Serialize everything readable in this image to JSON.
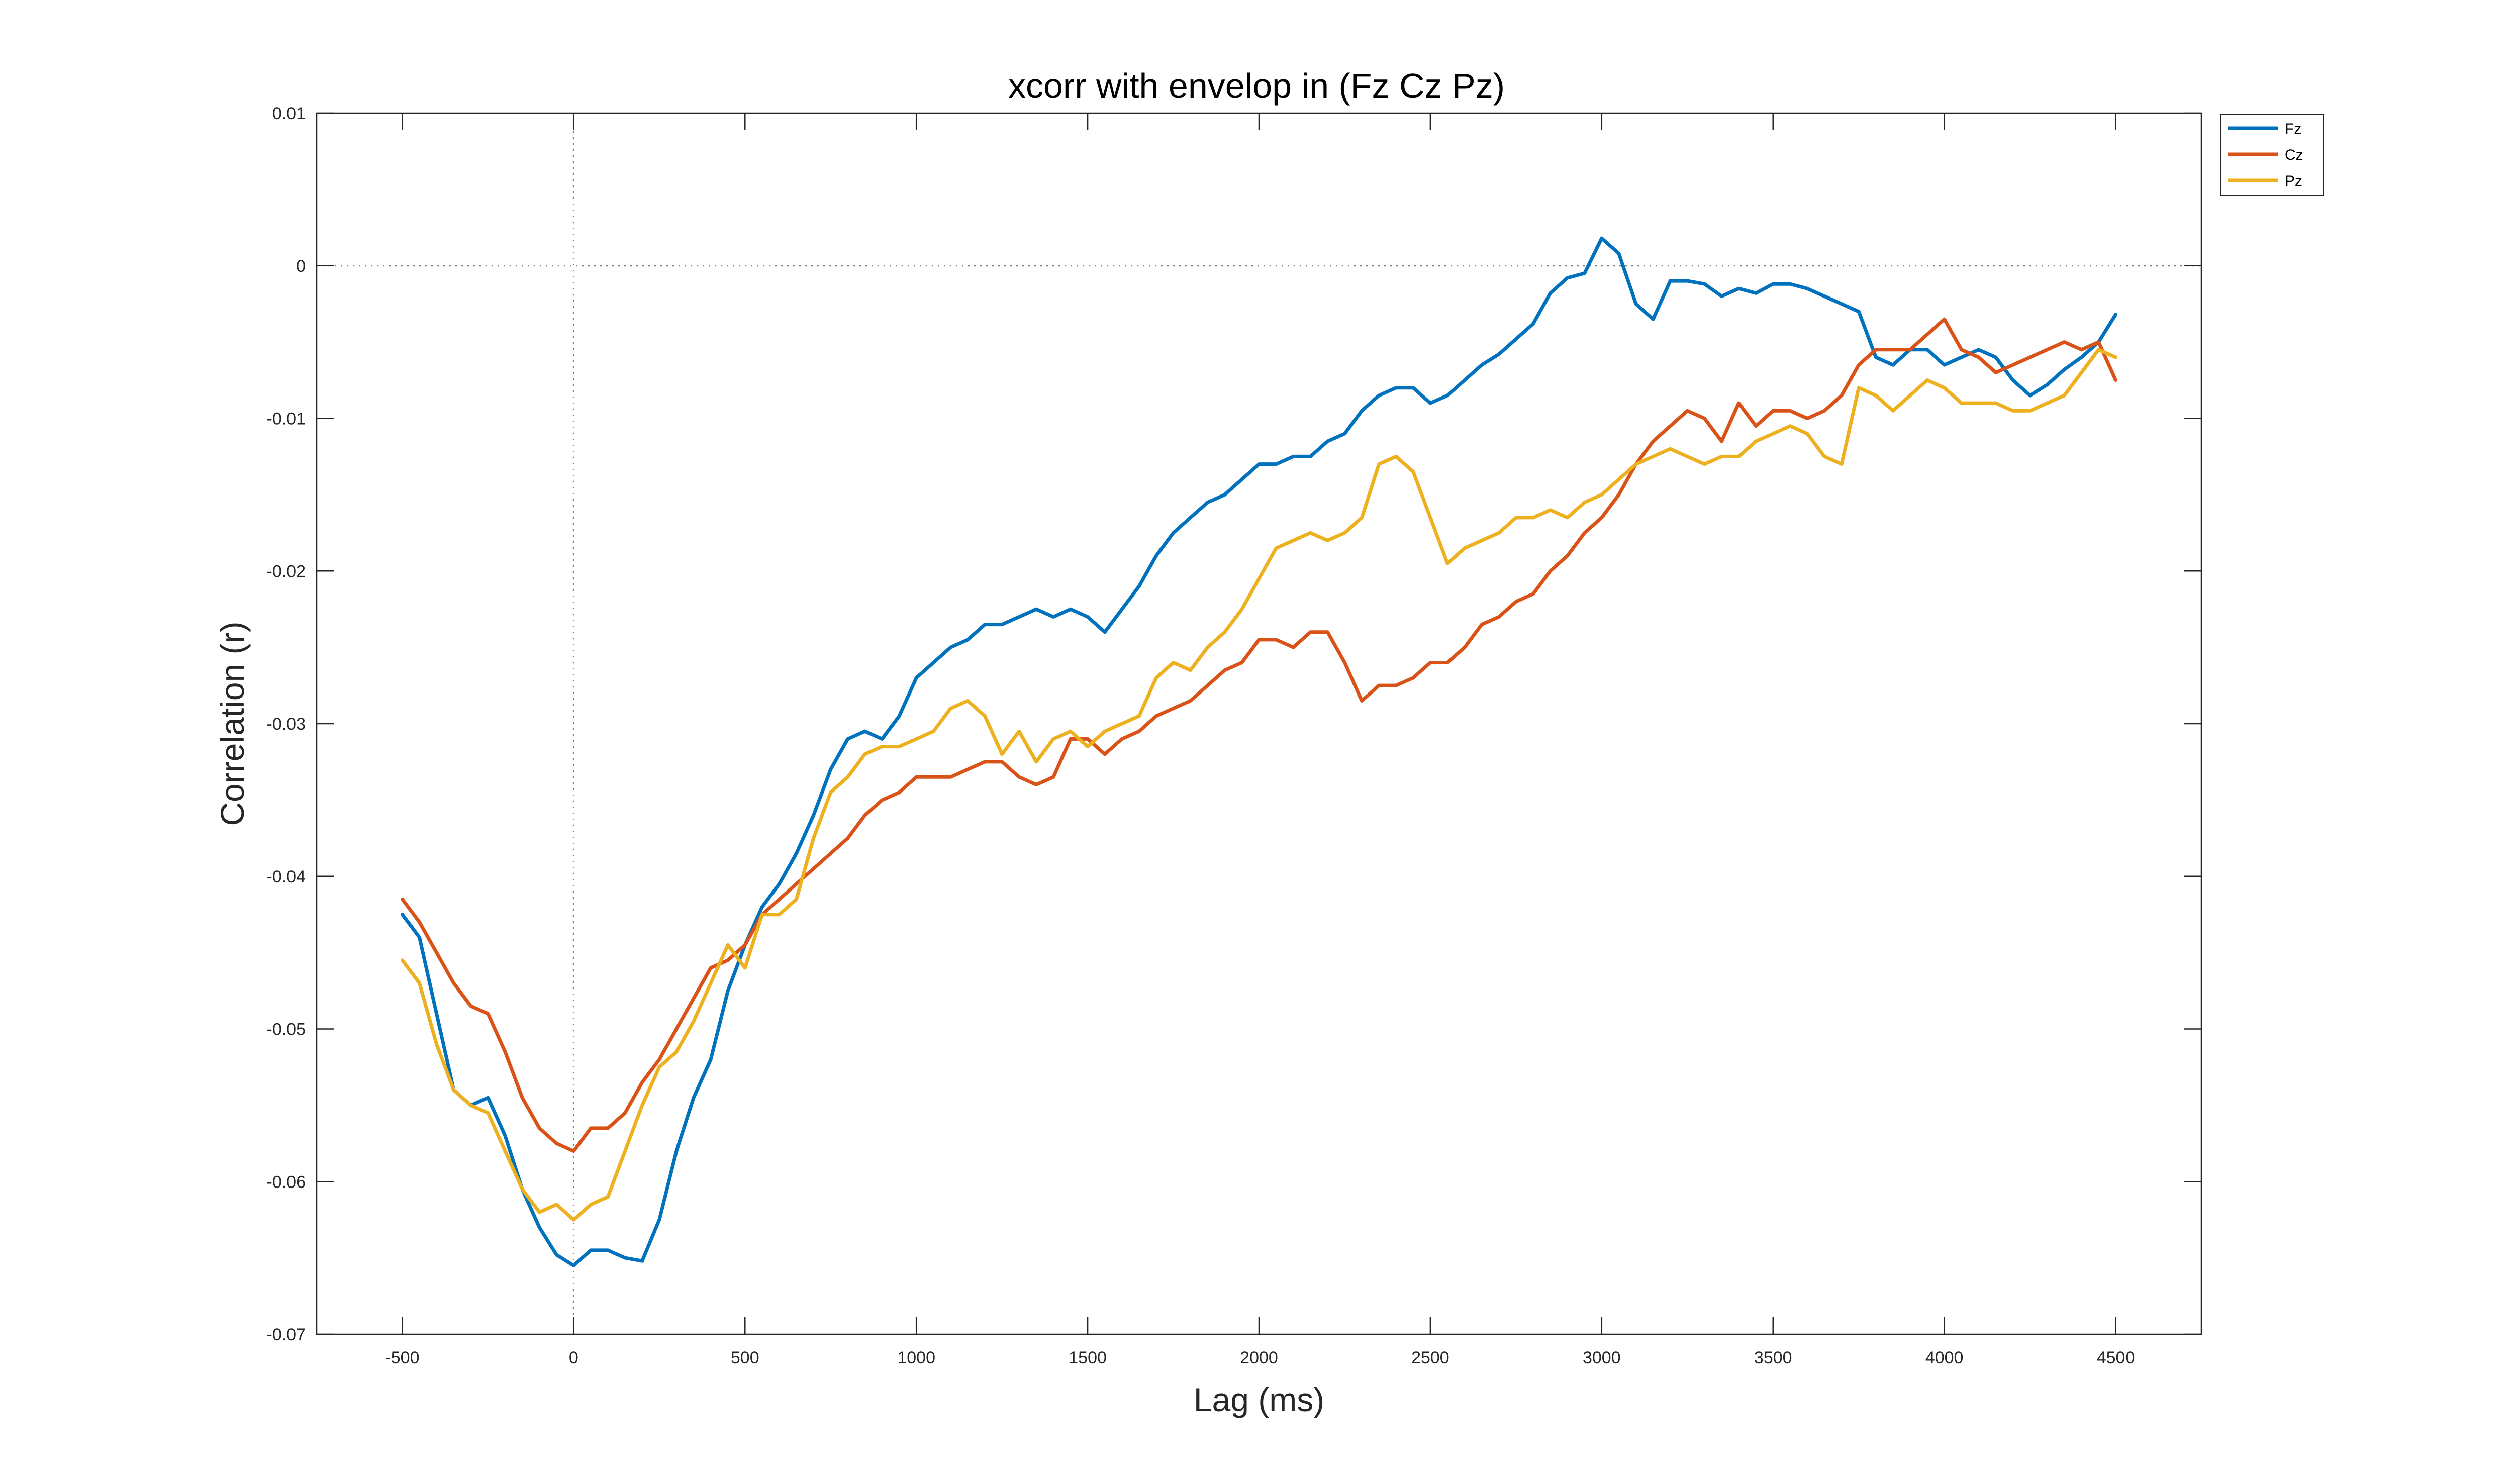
{
  "chart_data": {
    "type": "line",
    "title": "xcorr with envelop in (Fz Cz Pz)",
    "xlabel": "Lag (ms)",
    "ylabel": "Correlation (r)",
    "xlim": [
      -750,
      4750
    ],
    "ylim": [
      -0.07,
      0.01
    ],
    "xticks": [
      -500,
      0,
      500,
      1000,
      1500,
      2000,
      2500,
      3000,
      3500,
      4000,
      4500
    ],
    "xtick_labels": [
      "-500",
      "0",
      "500",
      "1000",
      "1500",
      "2000",
      "2500",
      "3000",
      "3500",
      "4000",
      "4500"
    ],
    "yticks": [
      0.01,
      0,
      -0.01,
      -0.02,
      -0.03,
      -0.04,
      -0.05,
      -0.06,
      -0.07
    ],
    "ytick_labels": [
      "0.01",
      "0",
      "-0.01",
      "-0.02",
      "-0.03",
      "-0.04",
      "-0.05",
      "-0.06",
      "-0.07"
    ],
    "reference_lines": {
      "x": 0,
      "y": 0,
      "style": "dotted"
    },
    "grid": false,
    "legend_position": "outside-top-right",
    "series": [
      {
        "name": "Fz",
        "color": "#0072BD",
        "x": [
          -500,
          -450,
          -400,
          -350,
          -300,
          -250,
          -200,
          -150,
          -100,
          -50,
          0,
          50,
          100,
          150,
          200,
          250,
          300,
          350,
          400,
          450,
          500,
          550,
          600,
          650,
          700,
          750,
          800,
          850,
          900,
          950,
          1000,
          1050,
          1100,
          1150,
          1200,
          1250,
          1300,
          1350,
          1400,
          1450,
          1500,
          1550,
          1600,
          1650,
          1700,
          1750,
          1800,
          1850,
          1900,
          1950,
          2000,
          2050,
          2100,
          2150,
          2200,
          2250,
          2300,
          2350,
          2400,
          2450,
          2500,
          2550,
          2600,
          2650,
          2700,
          2750,
          2800,
          2850,
          2900,
          2950,
          3000,
          3050,
          3100,
          3150,
          3200,
          3250,
          3300,
          3350,
          3400,
          3450,
          3500,
          3550,
          3600,
          3650,
          3700,
          3750,
          3800,
          3850,
          3900,
          3950,
          4000,
          4050,
          4100,
          4150,
          4200,
          4250,
          4300,
          4350,
          4400,
          4450,
          4500
        ],
        "y": [
          -0.0425,
          -0.044,
          -0.049,
          -0.054,
          -0.055,
          -0.0545,
          -0.057,
          -0.0605,
          -0.063,
          -0.0648,
          -0.0655,
          -0.0645,
          -0.0645,
          -0.065,
          -0.0652,
          -0.0625,
          -0.058,
          -0.0545,
          -0.052,
          -0.0475,
          -0.0445,
          -0.042,
          -0.0405,
          -0.0385,
          -0.036,
          -0.033,
          -0.031,
          -0.0305,
          -0.031,
          -0.0295,
          -0.027,
          -0.026,
          -0.025,
          -0.0245,
          -0.0235,
          -0.0235,
          -0.023,
          -0.0225,
          -0.023,
          -0.0225,
          -0.023,
          -0.024,
          -0.0225,
          -0.021,
          -0.019,
          -0.0175,
          -0.0165,
          -0.0155,
          -0.015,
          -0.014,
          -0.013,
          -0.013,
          -0.0125,
          -0.0125,
          -0.0115,
          -0.011,
          -0.0095,
          -0.0085,
          -0.008,
          -0.008,
          -0.009,
          -0.0085,
          -0.0075,
          -0.0065,
          -0.0058,
          -0.0048,
          -0.0038,
          -0.0018,
          -0.0008,
          -0.0005,
          0.0018,
          0.0008,
          -0.0025,
          -0.0035,
          -0.001,
          -0.001,
          -0.0012,
          -0.002,
          -0.0015,
          -0.0018,
          -0.0012,
          -0.0012,
          -0.0015,
          -0.002,
          -0.0025,
          -0.003,
          -0.006,
          -0.0065,
          -0.0055,
          -0.0055,
          -0.0065,
          -0.006,
          -0.0055,
          -0.006,
          -0.0075,
          -0.0085,
          -0.0078,
          -0.0068,
          -0.006,
          -0.005,
          -0.0032
        ]
      },
      {
        "name": "Cz",
        "color": "#D95319",
        "x": [
          -500,
          -450,
          -400,
          -350,
          -300,
          -250,
          -200,
          -150,
          -100,
          -50,
          0,
          50,
          100,
          150,
          200,
          250,
          300,
          350,
          400,
          450,
          500,
          550,
          600,
          650,
          700,
          750,
          800,
          850,
          900,
          950,
          1000,
          1050,
          1100,
          1150,
          1200,
          1250,
          1300,
          1350,
          1400,
          1450,
          1500,
          1550,
          1600,
          1650,
          1700,
          1750,
          1800,
          1850,
          1900,
          1950,
          2000,
          2050,
          2100,
          2150,
          2200,
          2250,
          2300,
          2350,
          2400,
          2450,
          2500,
          2550,
          2600,
          2650,
          2700,
          2750,
          2800,
          2850,
          2900,
          2950,
          3000,
          3050,
          3100,
          3150,
          3200,
          3250,
          3300,
          3350,
          3400,
          3450,
          3500,
          3550,
          3600,
          3650,
          3700,
          3750,
          3800,
          3850,
          3900,
          3950,
          4000,
          4050,
          4100,
          4150,
          4200,
          4250,
          4300,
          4350,
          4400,
          4450,
          4500
        ],
        "y": [
          -0.0415,
          -0.043,
          -0.045,
          -0.047,
          -0.0485,
          -0.049,
          -0.0515,
          -0.0545,
          -0.0565,
          -0.0575,
          -0.058,
          -0.0565,
          -0.0565,
          -0.0555,
          -0.0535,
          -0.052,
          -0.05,
          -0.048,
          -0.046,
          -0.0455,
          -0.0445,
          -0.0425,
          -0.0415,
          -0.0405,
          -0.0395,
          -0.0385,
          -0.0375,
          -0.036,
          -0.035,
          -0.0345,
          -0.0335,
          -0.0335,
          -0.0335,
          -0.033,
          -0.0325,
          -0.0325,
          -0.0335,
          -0.034,
          -0.0335,
          -0.031,
          -0.031,
          -0.032,
          -0.031,
          -0.0305,
          -0.0295,
          -0.029,
          -0.0285,
          -0.0275,
          -0.0265,
          -0.026,
          -0.0245,
          -0.0245,
          -0.025,
          -0.024,
          -0.024,
          -0.026,
          -0.0285,
          -0.0275,
          -0.0275,
          -0.027,
          -0.026,
          -0.026,
          -0.025,
          -0.0235,
          -0.023,
          -0.022,
          -0.0215,
          -0.02,
          -0.019,
          -0.0175,
          -0.0165,
          -0.015,
          -0.013,
          -0.0115,
          -0.0105,
          -0.0095,
          -0.01,
          -0.0115,
          -0.009,
          -0.0105,
          -0.0095,
          -0.0095,
          -0.01,
          -0.0095,
          -0.0085,
          -0.0065,
          -0.0055,
          -0.0055,
          -0.0055,
          -0.0045,
          -0.0035,
          -0.0055,
          -0.006,
          -0.007,
          -0.0065,
          -0.006,
          -0.0055,
          -0.005,
          -0.0055,
          -0.005,
          -0.0075
        ]
      },
      {
        "name": "Pz",
        "color": "#EDB120",
        "x": [
          -500,
          -450,
          -400,
          -350,
          -300,
          -250,
          -200,
          -150,
          -100,
          -50,
          0,
          50,
          100,
          150,
          200,
          250,
          300,
          350,
          400,
          450,
          500,
          550,
          600,
          650,
          700,
          750,
          800,
          850,
          900,
          950,
          1000,
          1050,
          1100,
          1150,
          1200,
          1250,
          1300,
          1350,
          1400,
          1450,
          1500,
          1550,
          1600,
          1650,
          1700,
          1750,
          1800,
          1850,
          1900,
          1950,
          2000,
          2050,
          2100,
          2150,
          2200,
          2250,
          2300,
          2350,
          2400,
          2450,
          2500,
          2550,
          2600,
          2650,
          2700,
          2750,
          2800,
          2850,
          2900,
          2950,
          3000,
          3050,
          3100,
          3150,
          3200,
          3250,
          3300,
          3350,
          3400,
          3450,
          3500,
          3550,
          3600,
          3650,
          3700,
          3750,
          3800,
          3850,
          3900,
          3950,
          4000,
          4050,
          4100,
          4150,
          4200,
          4250,
          4300,
          4350,
          4400,
          4450,
          4500
        ],
        "y": [
          -0.0455,
          -0.047,
          -0.051,
          -0.054,
          -0.055,
          -0.0555,
          -0.058,
          -0.0605,
          -0.062,
          -0.0615,
          -0.0625,
          -0.0615,
          -0.061,
          -0.058,
          -0.055,
          -0.0525,
          -0.0515,
          -0.0495,
          -0.047,
          -0.0445,
          -0.046,
          -0.0425,
          -0.0425,
          -0.0415,
          -0.0375,
          -0.0345,
          -0.0335,
          -0.032,
          -0.0315,
          -0.0315,
          -0.031,
          -0.0305,
          -0.029,
          -0.0285,
          -0.0295,
          -0.032,
          -0.0305,
          -0.0325,
          -0.031,
          -0.0305,
          -0.0315,
          -0.0305,
          -0.03,
          -0.0295,
          -0.027,
          -0.026,
          -0.0265,
          -0.025,
          -0.024,
          -0.0225,
          -0.0205,
          -0.0185,
          -0.018,
          -0.0175,
          -0.018,
          -0.0175,
          -0.0165,
          -0.013,
          -0.0125,
          -0.0135,
          -0.0165,
          -0.0195,
          -0.0185,
          -0.018,
          -0.0175,
          -0.0165,
          -0.0165,
          -0.016,
          -0.0165,
          -0.0155,
          -0.015,
          -0.014,
          -0.013,
          -0.0125,
          -0.012,
          -0.0125,
          -0.013,
          -0.0125,
          -0.0125,
          -0.0115,
          -0.011,
          -0.0105,
          -0.011,
          -0.0125,
          -0.013,
          -0.008,
          -0.0085,
          -0.0095,
          -0.0085,
          -0.0075,
          -0.008,
          -0.009,
          -0.009,
          -0.009,
          -0.0095,
          -0.0095,
          -0.009,
          -0.0085,
          -0.007,
          -0.0055,
          -0.006
        ]
      }
    ]
  }
}
